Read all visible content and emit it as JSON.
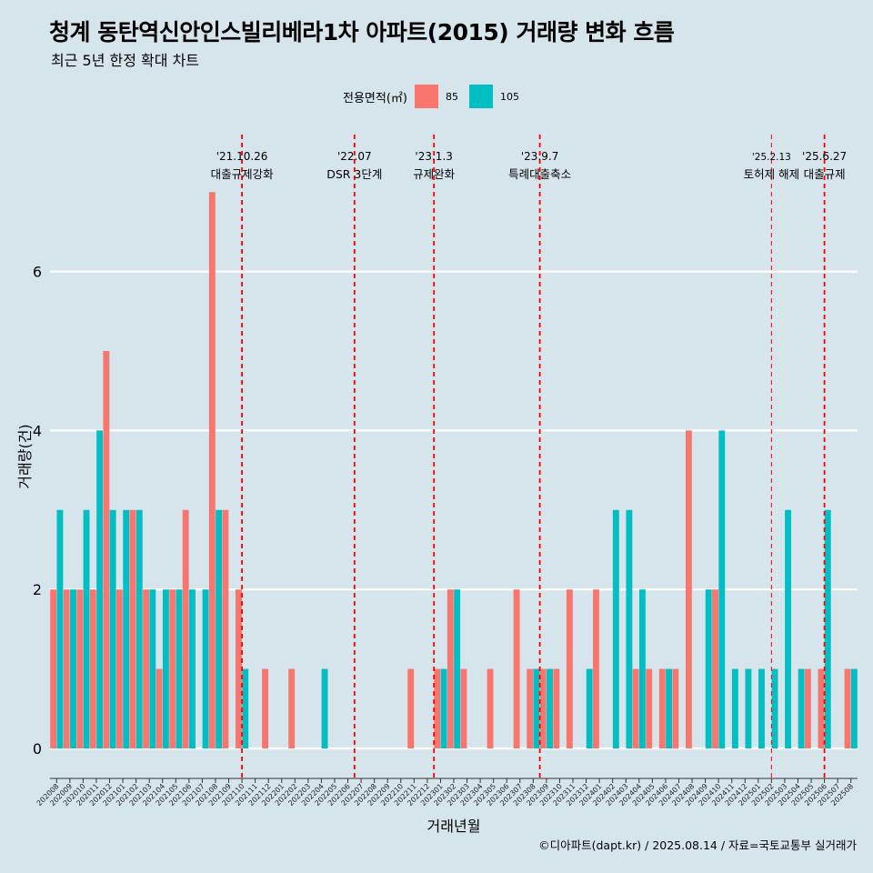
{
  "title": "청계 동탄역신안인스빌리베라1차 아파트(2015) 거래량 변화 흐름",
  "subtitle": "최근 5년 한정 확대 차트",
  "caption": "©디아파트(dapt.kr) / 2025.08.14 / 자료=국토교통부 실거래가",
  "legend": {
    "title": "전용면적(㎡)",
    "items": [
      {
        "label": "85",
        "color": "#F8766D"
      },
      {
        "label": "105",
        "color": "#00BFC4"
      }
    ]
  },
  "chart_data": {
    "type": "bar",
    "xlabel": "거래년월",
    "ylabel": "거래량(건)",
    "ylim": [
      0,
      7
    ],
    "yticks": [
      0,
      2,
      4,
      6
    ],
    "categories": [
      "202008",
      "202009",
      "202010",
      "202011",
      "202012",
      "202101",
      "202102",
      "202103",
      "202104",
      "202105",
      "202106",
      "202107",
      "202108",
      "202109",
      "202110",
      "202111",
      "202112",
      "202201",
      "202202",
      "202203",
      "202204",
      "202205",
      "202206",
      "202207",
      "202208",
      "202209",
      "202210",
      "202211",
      "202212",
      "202301",
      "202302",
      "202303",
      "202304",
      "202305",
      "202306",
      "202307",
      "202308",
      "202309",
      "202310",
      "202311",
      "202312",
      "202401",
      "202402",
      "202403",
      "202404",
      "202405",
      "202406",
      "202407",
      "202408",
      "202409",
      "202410",
      "202411",
      "202412",
      "202501",
      "202502",
      "202503",
      "202504",
      "202505",
      "202506",
      "202507",
      "202508"
    ],
    "series": [
      {
        "name": "85",
        "color": "#F8766D",
        "values": [
          2,
          2,
          2,
          2,
          5,
          2,
          3,
          2,
          1,
          2,
          3,
          0,
          7,
          3,
          2,
          0,
          1,
          0,
          1,
          0,
          0,
          0,
          0,
          0,
          0,
          0,
          0,
          1,
          0,
          1,
          2,
          1,
          0,
          1,
          0,
          2,
          1,
          1,
          1,
          2,
          0,
          2,
          0,
          0,
          1,
          1,
          1,
          1,
          4,
          0,
          2,
          0,
          0,
          0,
          0,
          0,
          0,
          1,
          1,
          0,
          1
        ]
      },
      {
        "name": "105",
        "color": "#00BFC4",
        "values": [
          3,
          2,
          3,
          4,
          3,
          3,
          3,
          2,
          2,
          2,
          2,
          2,
          3,
          0,
          1,
          0,
          0,
          0,
          0,
          0,
          1,
          0,
          0,
          0,
          0,
          0,
          0,
          0,
          0,
          1,
          2,
          0,
          0,
          0,
          0,
          0,
          1,
          1,
          0,
          0,
          1,
          0,
          3,
          3,
          2,
          0,
          1,
          0,
          0,
          2,
          4,
          1,
          1,
          1,
          1,
          3,
          1,
          0,
          3,
          0,
          1
        ]
      }
    ],
    "events": [
      {
        "date": "'21.10.26",
        "label": "대출규제강화",
        "pos": 14.5,
        "style": "bold"
      },
      {
        "date": "'22.07",
        "label": "DSR 3단계",
        "pos": 23,
        "style": "bold"
      },
      {
        "date": "'23.1.3",
        "label": "규제완화",
        "pos": 29,
        "style": "bold"
      },
      {
        "date": "'23.9.7",
        "label": "특례대출축소",
        "pos": 37,
        "style": "bold"
      },
      {
        "date": "'25.2.13",
        "label": "토허제 해제",
        "pos": 54.5,
        "style": "thin"
      },
      {
        "date": "'25.6.27",
        "label": "대출규제",
        "pos": 58.5,
        "style": "bold"
      }
    ]
  }
}
